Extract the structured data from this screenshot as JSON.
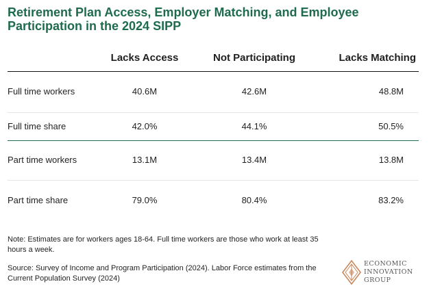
{
  "title": "Retirement Plan Access, Employer Matching, and Employee Participation in the 2024 SIPP",
  "table": {
    "columns": [
      "Lacks Access",
      "Not Participating",
      "Lacks Matching"
    ],
    "rows": [
      {
        "label": "Full time workers",
        "values": [
          "40.6M",
          "42.6M",
          "48.8M"
        ]
      },
      {
        "label": "Full time share",
        "values": [
          "42.0%",
          "44.1%",
          "50.5%"
        ]
      },
      {
        "label": "Part time workers",
        "values": [
          "13.1M",
          "13.4M",
          "13.8M"
        ]
      },
      {
        "label": "Part time share",
        "values": [
          "79.0%",
          "80.4%",
          "83.2%"
        ]
      }
    ]
  },
  "note": "Note: Estimates are for workers ages 18-64. Full time workers are those who work at least 35 hours a week.",
  "source": "Source: Survey of Income and Program Participation (2024). Labor Force estimates from the Current Population Survey (2024)",
  "logo": {
    "line1": "ECONOMIC",
    "line2": "INNOVATION",
    "line3": "GROUP",
    "color": "#c8875a"
  },
  "colors": {
    "title": "#1e6b4e",
    "divider": "#1e6b4e"
  }
}
